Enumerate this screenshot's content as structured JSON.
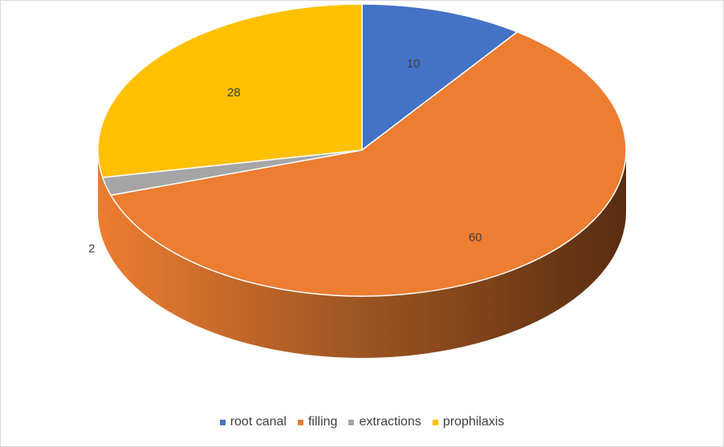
{
  "chart_data": {
    "type": "pie",
    "style": "3d",
    "categories": [
      "root canal",
      "filling",
      "extractions",
      "prophilaxis"
    ],
    "values": [
      10,
      60,
      2,
      28
    ],
    "data_labels": [
      "10",
      "60",
      "2",
      "28"
    ],
    "colors": [
      "#4472C4",
      "#ED7D31",
      "#A5A5A5",
      "#FFC000"
    ],
    "legend_position": "bottom"
  }
}
